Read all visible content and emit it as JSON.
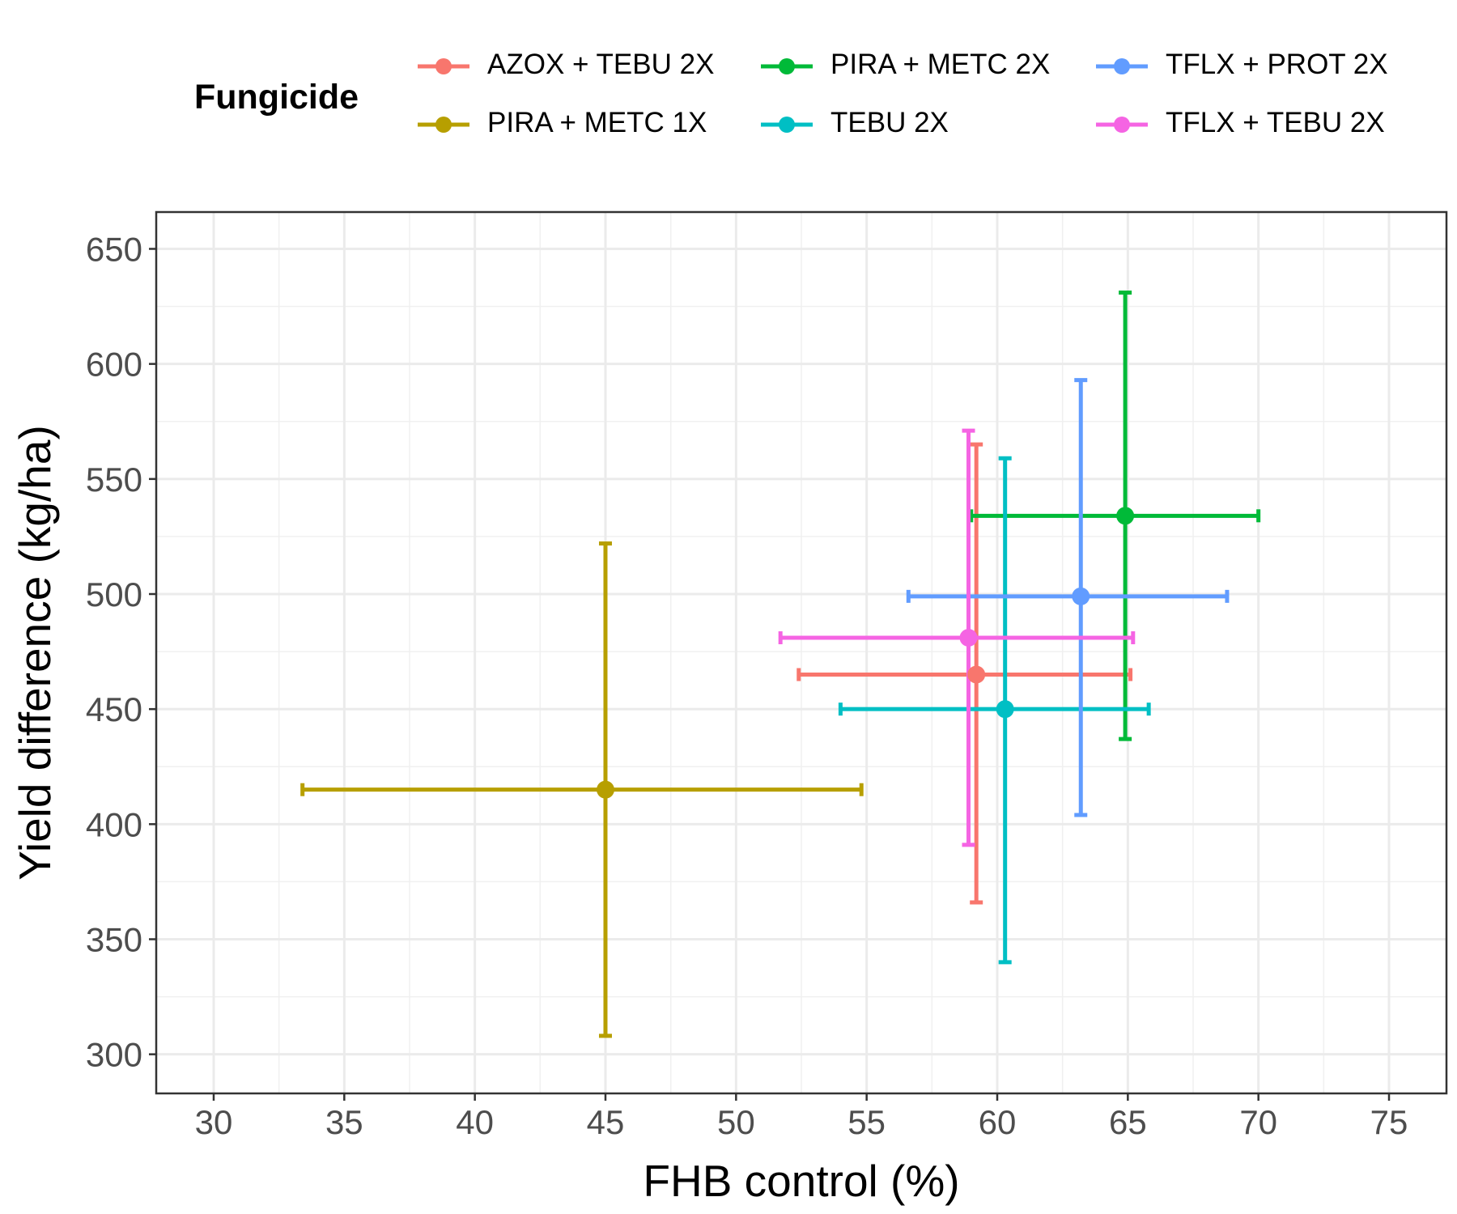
{
  "chart_data": {
    "type": "scatter",
    "subtype": "point-with-xy-error-bars",
    "title": "",
    "xlabel": "FHB control (%)",
    "ylabel": "Yield difference (kg/ha)",
    "xlim": [
      27.8,
      77.2
    ],
    "ylim": [
      283,
      666
    ],
    "x_ticks": [
      30,
      35,
      40,
      45,
      50,
      55,
      60,
      65,
      70,
      75
    ],
    "y_ticks": [
      300,
      350,
      400,
      450,
      500,
      550,
      600,
      650
    ],
    "grid": true,
    "legend": {
      "title": "Fungicide",
      "position": "top"
    },
    "series": [
      {
        "name": "AZOX + TEBU 2X",
        "color": "#F8766D",
        "x": 59.2,
        "y": 465,
        "x_low": 52.4,
        "x_high": 65.1,
        "y_low": 366,
        "y_high": 565
      },
      {
        "name": "PIRA + METC 1X",
        "color": "#B79F00",
        "x": 45.0,
        "y": 415,
        "x_low": 33.4,
        "x_high": 54.8,
        "y_low": 308,
        "y_high": 522
      },
      {
        "name": "PIRA + METC 2X",
        "color": "#00BA38",
        "x": 64.9,
        "y": 534,
        "x_low": 59.0,
        "x_high": 70.0,
        "y_low": 437,
        "y_high": 631
      },
      {
        "name": "TEBU 2X",
        "color": "#00BFC4",
        "x": 60.3,
        "y": 450,
        "x_low": 54.0,
        "x_high": 65.8,
        "y_low": 340,
        "y_high": 559
      },
      {
        "name": "TFLX + PROT 2X",
        "color": "#619CFF",
        "x": 63.2,
        "y": 499,
        "x_low": 56.6,
        "x_high": 68.8,
        "y_low": 404,
        "y_high": 593
      },
      {
        "name": "TFLX + TEBU 2X",
        "color": "#F564E3",
        "x": 58.9,
        "y": 481,
        "x_low": 51.7,
        "x_high": 65.2,
        "y_low": 391,
        "y_high": 571
      }
    ]
  }
}
